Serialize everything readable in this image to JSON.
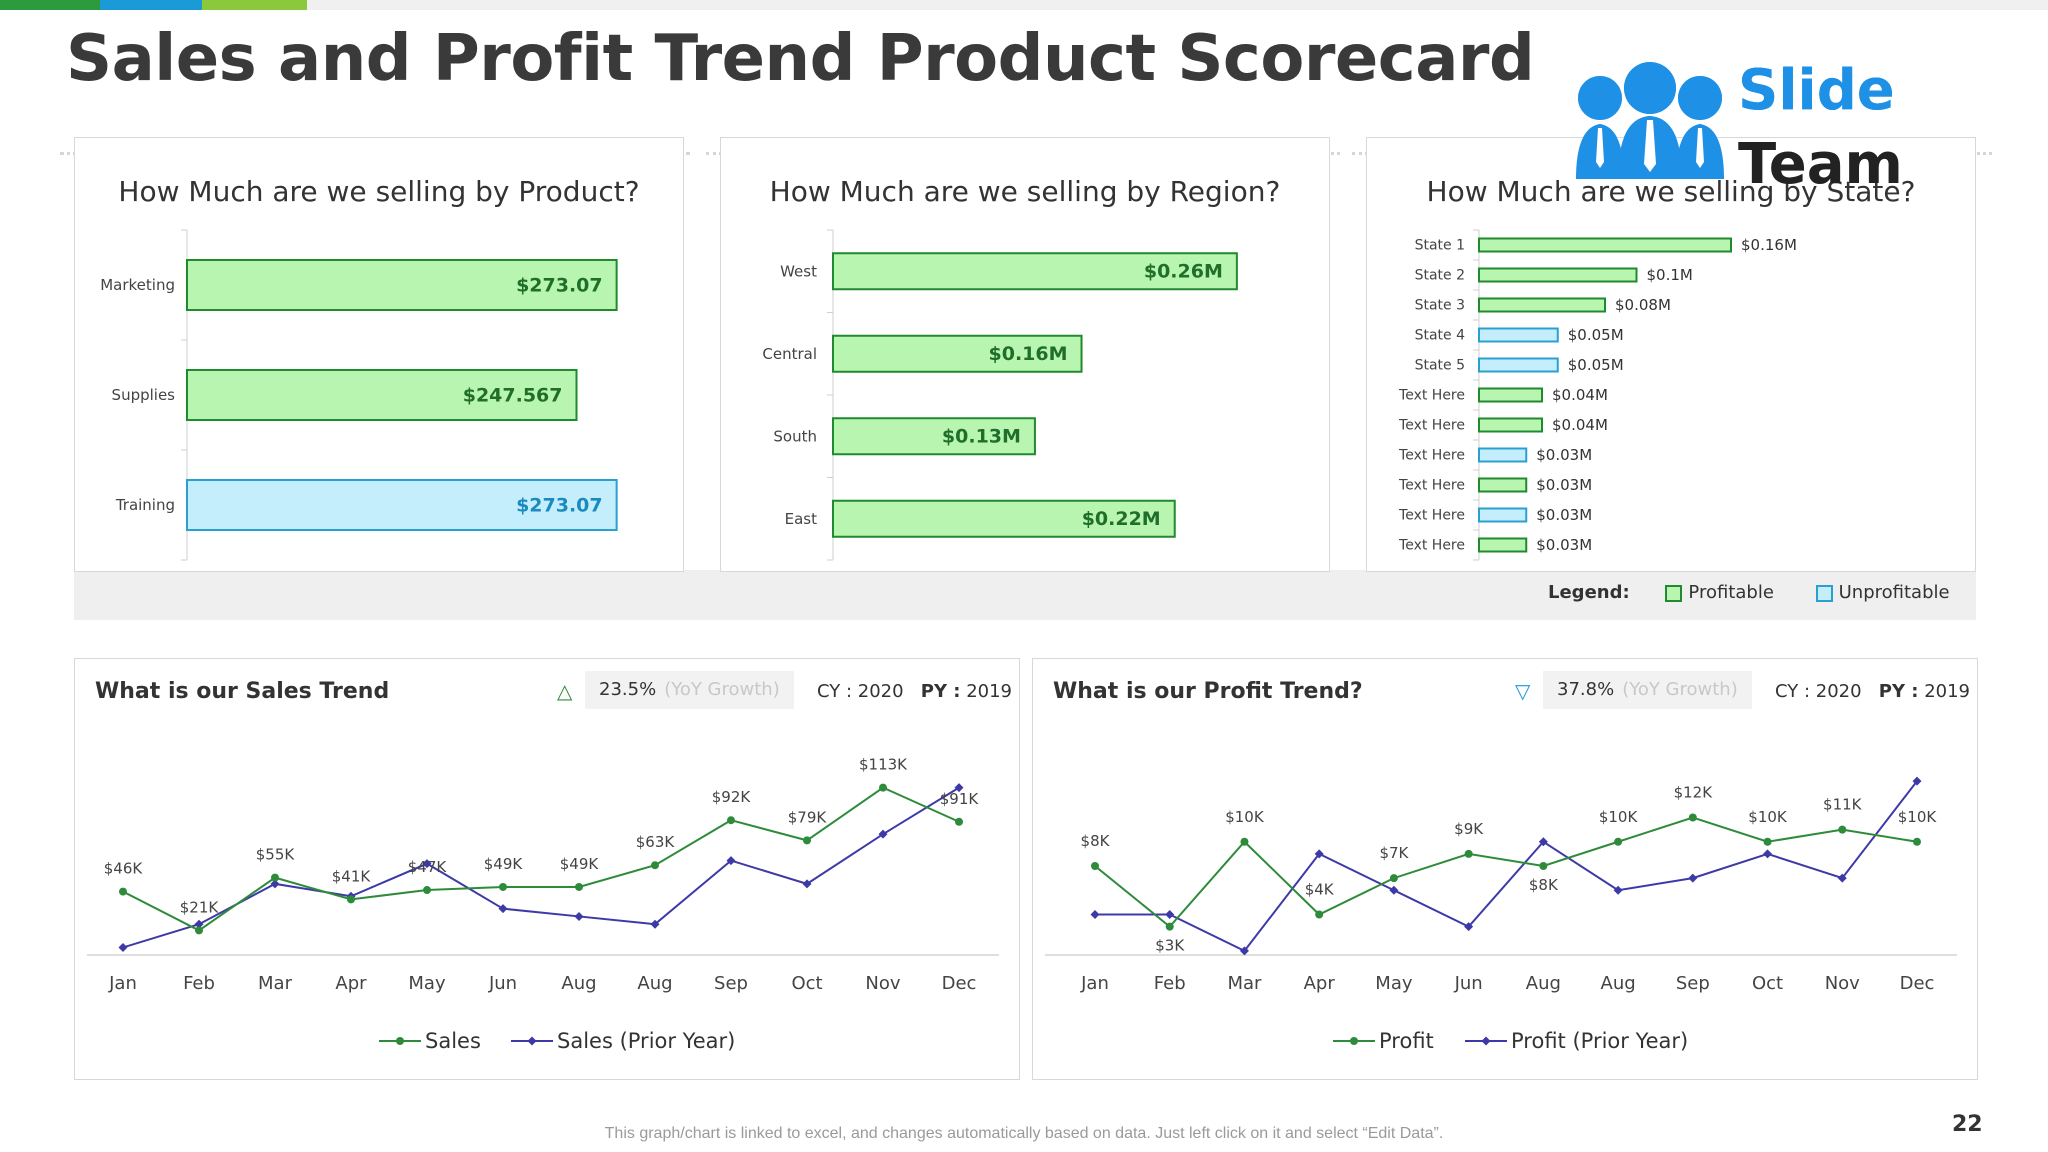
{
  "page": {
    "title": "Sales and Profit Trend Product Scorecard",
    "page_number": "22",
    "footnote": "This graph/chart is linked to excel, and changes automatically based on data. Just left click on it and select “Edit Data”.",
    "logo": {
      "line1": "Slide",
      "line2": "Team"
    }
  },
  "colors": {
    "profitable_fill": "#b8f5b0",
    "profitable_border": "#1f8a2e",
    "unprofitable_fill": "#c4eefc",
    "unprofitable_border": "#2aa0d0",
    "current_line": "#2e8b3a",
    "prior_line": "#3d3aa8",
    "logo_blue": "#1e90e6"
  },
  "legend": {
    "label": "Legend:",
    "profitable": "Profitable",
    "unprofitable": "Unprofitable"
  },
  "chart_data": [
    {
      "type": "bar",
      "orientation": "horizontal",
      "title": "How Much are we selling by Product?",
      "categories": [
        "Marketing",
        "Supplies",
        "Training"
      ],
      "values": [
        273.07,
        247.567,
        273.07
      ],
      "labels": [
        "$273.07",
        "$247.567",
        "$273.07"
      ],
      "status": [
        "profitable",
        "profitable",
        "unprofitable"
      ],
      "xlim": [
        0,
        300
      ]
    },
    {
      "type": "bar",
      "orientation": "horizontal",
      "title": "How Much are we selling by Region?",
      "categories": [
        "West",
        "Central",
        "South",
        "East"
      ],
      "values": [
        0.26,
        0.16,
        0.13,
        0.22
      ],
      "labels": [
        "$0.26M",
        "$0.16M",
        "$0.13M",
        "$0.22M"
      ],
      "status": [
        "profitable",
        "profitable",
        "profitable",
        "profitable"
      ],
      "xlim": [
        0,
        0.3
      ]
    },
    {
      "type": "bar",
      "orientation": "horizontal",
      "title": "How Much are we selling by State?",
      "categories": [
        "State 1",
        "State 2",
        "State 3",
        "State 4",
        "State 5",
        "Text Here",
        "Text Here",
        "Text Here",
        "Text Here",
        "Text Here",
        "Text Here"
      ],
      "values": [
        0.16,
        0.1,
        0.08,
        0.05,
        0.05,
        0.04,
        0.04,
        0.03,
        0.03,
        0.03,
        0.03
      ],
      "labels": [
        "$0.16M",
        "$0.1M",
        "$0.08M",
        "$0.05M",
        "$0.05M",
        "$0.04M",
        "$0.04M",
        "$0.03M",
        "$0.03M",
        "$0.03M",
        "$0.03M"
      ],
      "status": [
        "profitable",
        "profitable",
        "profitable",
        "unprofitable",
        "unprofitable",
        "profitable",
        "profitable",
        "unprofitable",
        "profitable",
        "unprofitable",
        "profitable"
      ],
      "xlim": [
        0,
        0.16
      ]
    },
    {
      "type": "line",
      "title": "What is our Sales Trend",
      "kpi": {
        "value": "23.5%",
        "label": "(YoY Growth)",
        "direction": "up"
      },
      "years": {
        "cy_label": "CY :",
        "cy": "2020",
        "py_label": "PY :",
        "py": "2019"
      },
      "x": [
        "Jan",
        "Feb",
        "Mar",
        "Apr",
        "May",
        "Jun",
        "Aug",
        "Aug",
        "Sep",
        "Oct",
        "Nov",
        "Dec"
      ],
      "series": [
        {
          "name": "Sales",
          "values": [
            46,
            21,
            55,
            41,
            47,
            49,
            49,
            63,
            92,
            79,
            113,
            91
          ],
          "labels": [
            "$46K",
            "$21K",
            "$55K",
            "$41K",
            "$47K",
            "$49K",
            "$49K",
            "$63K",
            "$92K",
            "$79K",
            "$113K",
            "$91K"
          ]
        },
        {
          "name": "Sales (Prior Year)",
          "values": [
            10,
            25,
            51,
            43,
            64,
            35,
            30,
            25,
            66,
            51,
            83,
            113
          ]
        }
      ],
      "ylim": [
        0,
        125
      ]
    },
    {
      "type": "line",
      "title": "What is our Profit Trend?",
      "kpi": {
        "value": "37.8%",
        "label": "(YoY Growth)",
        "direction": "down"
      },
      "years": {
        "cy_label": "CY :",
        "cy": "2020",
        "py_label": "PY :",
        "py": "2019"
      },
      "x": [
        "Jan",
        "Feb",
        "Mar",
        "Apr",
        "May",
        "Jun",
        "Aug",
        "Aug",
        "Sep",
        "Oct",
        "Nov",
        "Dec"
      ],
      "series": [
        {
          "name": "Profit",
          "values": [
            8,
            3,
            10,
            4,
            7,
            9,
            8,
            10,
            12,
            10,
            11,
            10
          ],
          "labels": [
            "$8K",
            "$3K",
            "$10K",
            "$4K",
            "$7K",
            "$9K",
            "$8K",
            "$10K",
            "$12K",
            "$10K",
            "$11K",
            "$10K"
          ]
        },
        {
          "name": "Profit (Prior Year)",
          "values": [
            4,
            4,
            1,
            9,
            6,
            3,
            10,
            6,
            7,
            9,
            7,
            15
          ]
        }
      ],
      "ylim": [
        0,
        16
      ]
    }
  ]
}
